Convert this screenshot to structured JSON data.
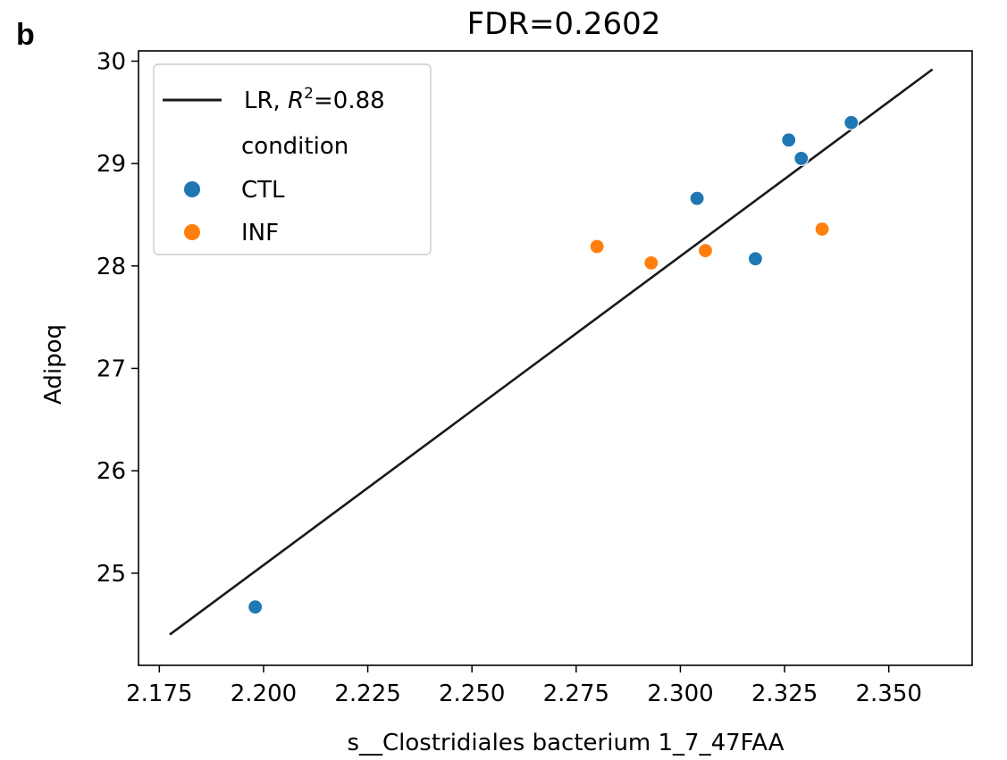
{
  "panel_label": "b",
  "chart_data": {
    "type": "scatter",
    "title": "FDR=0.2602",
    "xlabel": "s__Clostridiales bacterium 1_7_47FAA",
    "ylabel": "Adipoq",
    "xlim": [
      2.17,
      2.37
    ],
    "ylim": [
      24.1,
      30.1
    ],
    "xticks": [
      "2.175",
      "2.200",
      "2.225",
      "2.250",
      "2.275",
      "2.300",
      "2.325",
      "2.350"
    ],
    "yticks": [
      "25",
      "26",
      "27",
      "28",
      "29",
      "30"
    ],
    "grid": false,
    "legend_position": "top-left",
    "legend": {
      "line_label": "LR, R²=0.88",
      "line_label_prefix": "LR, ",
      "line_label_var": "R",
      "line_label_sup": "2",
      "line_label_suffix": "=0.88",
      "group_title": "condition"
    },
    "regression_line": {
      "name": "LR",
      "r2": 0.88,
      "color": "#1a1a1a",
      "points": [
        {
          "x": 2.1775,
          "y": 24.4
        },
        {
          "x": 2.3605,
          "y": 29.92
        }
      ]
    },
    "series": [
      {
        "name": "CTL",
        "color": "#1f77b4",
        "points": [
          {
            "x": 2.198,
            "y": 24.67
          },
          {
            "x": 2.304,
            "y": 28.66
          },
          {
            "x": 2.318,
            "y": 28.07
          },
          {
            "x": 2.326,
            "y": 29.23
          },
          {
            "x": 2.329,
            "y": 29.05
          },
          {
            "x": 2.341,
            "y": 29.4
          }
        ]
      },
      {
        "name": "INF",
        "color": "#ff7f0e",
        "points": [
          {
            "x": 2.28,
            "y": 28.19
          },
          {
            "x": 2.293,
            "y": 28.03
          },
          {
            "x": 2.306,
            "y": 28.15
          },
          {
            "x": 2.334,
            "y": 28.36
          }
        ]
      }
    ]
  }
}
